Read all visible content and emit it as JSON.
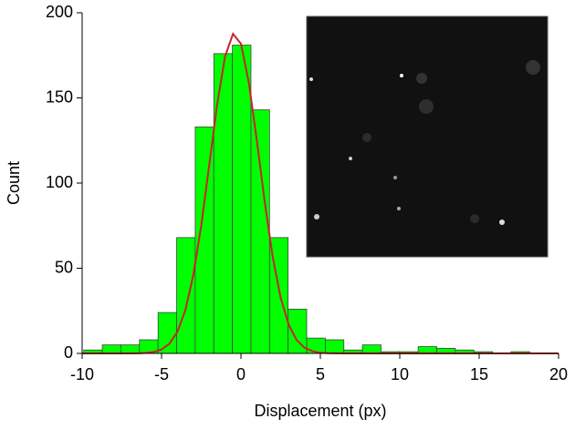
{
  "chart_data": {
    "type": "histogram",
    "x_label": "Displacement (px)",
    "y_label": "Count",
    "bins": [
      -9.9,
      -8.73,
      -7.56,
      -6.39,
      -5.22,
      -4.05,
      -2.88,
      -1.71,
      -0.54,
      0.63,
      1.8,
      2.97,
      4.14,
      5.31,
      6.48,
      7.65,
      8.82,
      9.99,
      11.16,
      12.33,
      13.5,
      14.67,
      15.84,
      17.01,
      18.18,
      19.35
    ],
    "values": [
      2,
      5,
      5,
      8,
      24,
      68,
      133,
      176,
      181,
      143,
      68,
      26,
      9,
      8,
      2,
      5,
      1,
      1,
      4,
      3,
      2,
      1,
      0,
      1,
      0
    ],
    "color": "#00ff00",
    "fit": {
      "color": "#c8232b",
      "x": [
        -10,
        -7,
        -6.5,
        -6,
        -5.5,
        -5,
        -4.5,
        -4,
        -3.5,
        -3,
        -2.5,
        -2,
        -1.5,
        -1,
        -0.5,
        0,
        0.5,
        1,
        1.5,
        2,
        2.5,
        3,
        3.5,
        4,
        4.5,
        5,
        5.5,
        6,
        8,
        12,
        16,
        20
      ],
      "values": [
        0,
        0.02,
        0.08,
        0.27,
        0.84,
        2.3,
        5.7,
        12.7,
        25.4,
        46.0,
        75.1,
        110.4,
        146.1,
        174.4,
        187.6,
        181.8,
        158.8,
        125.0,
        88.7,
        56.7,
        32.7,
        17.0,
        7.9,
        3.3,
        1.3,
        0.4,
        0.1,
        0.04,
        0,
        0,
        0,
        0
      ]
    },
    "xlim": [
      -10,
      20
    ],
    "xticks": [
      -10,
      -5,
      0,
      5,
      10,
      15,
      20
    ],
    "ylim": [
      0,
      200
    ],
    "yticks": [
      0,
      50,
      100,
      150,
      200
    ]
  }
}
